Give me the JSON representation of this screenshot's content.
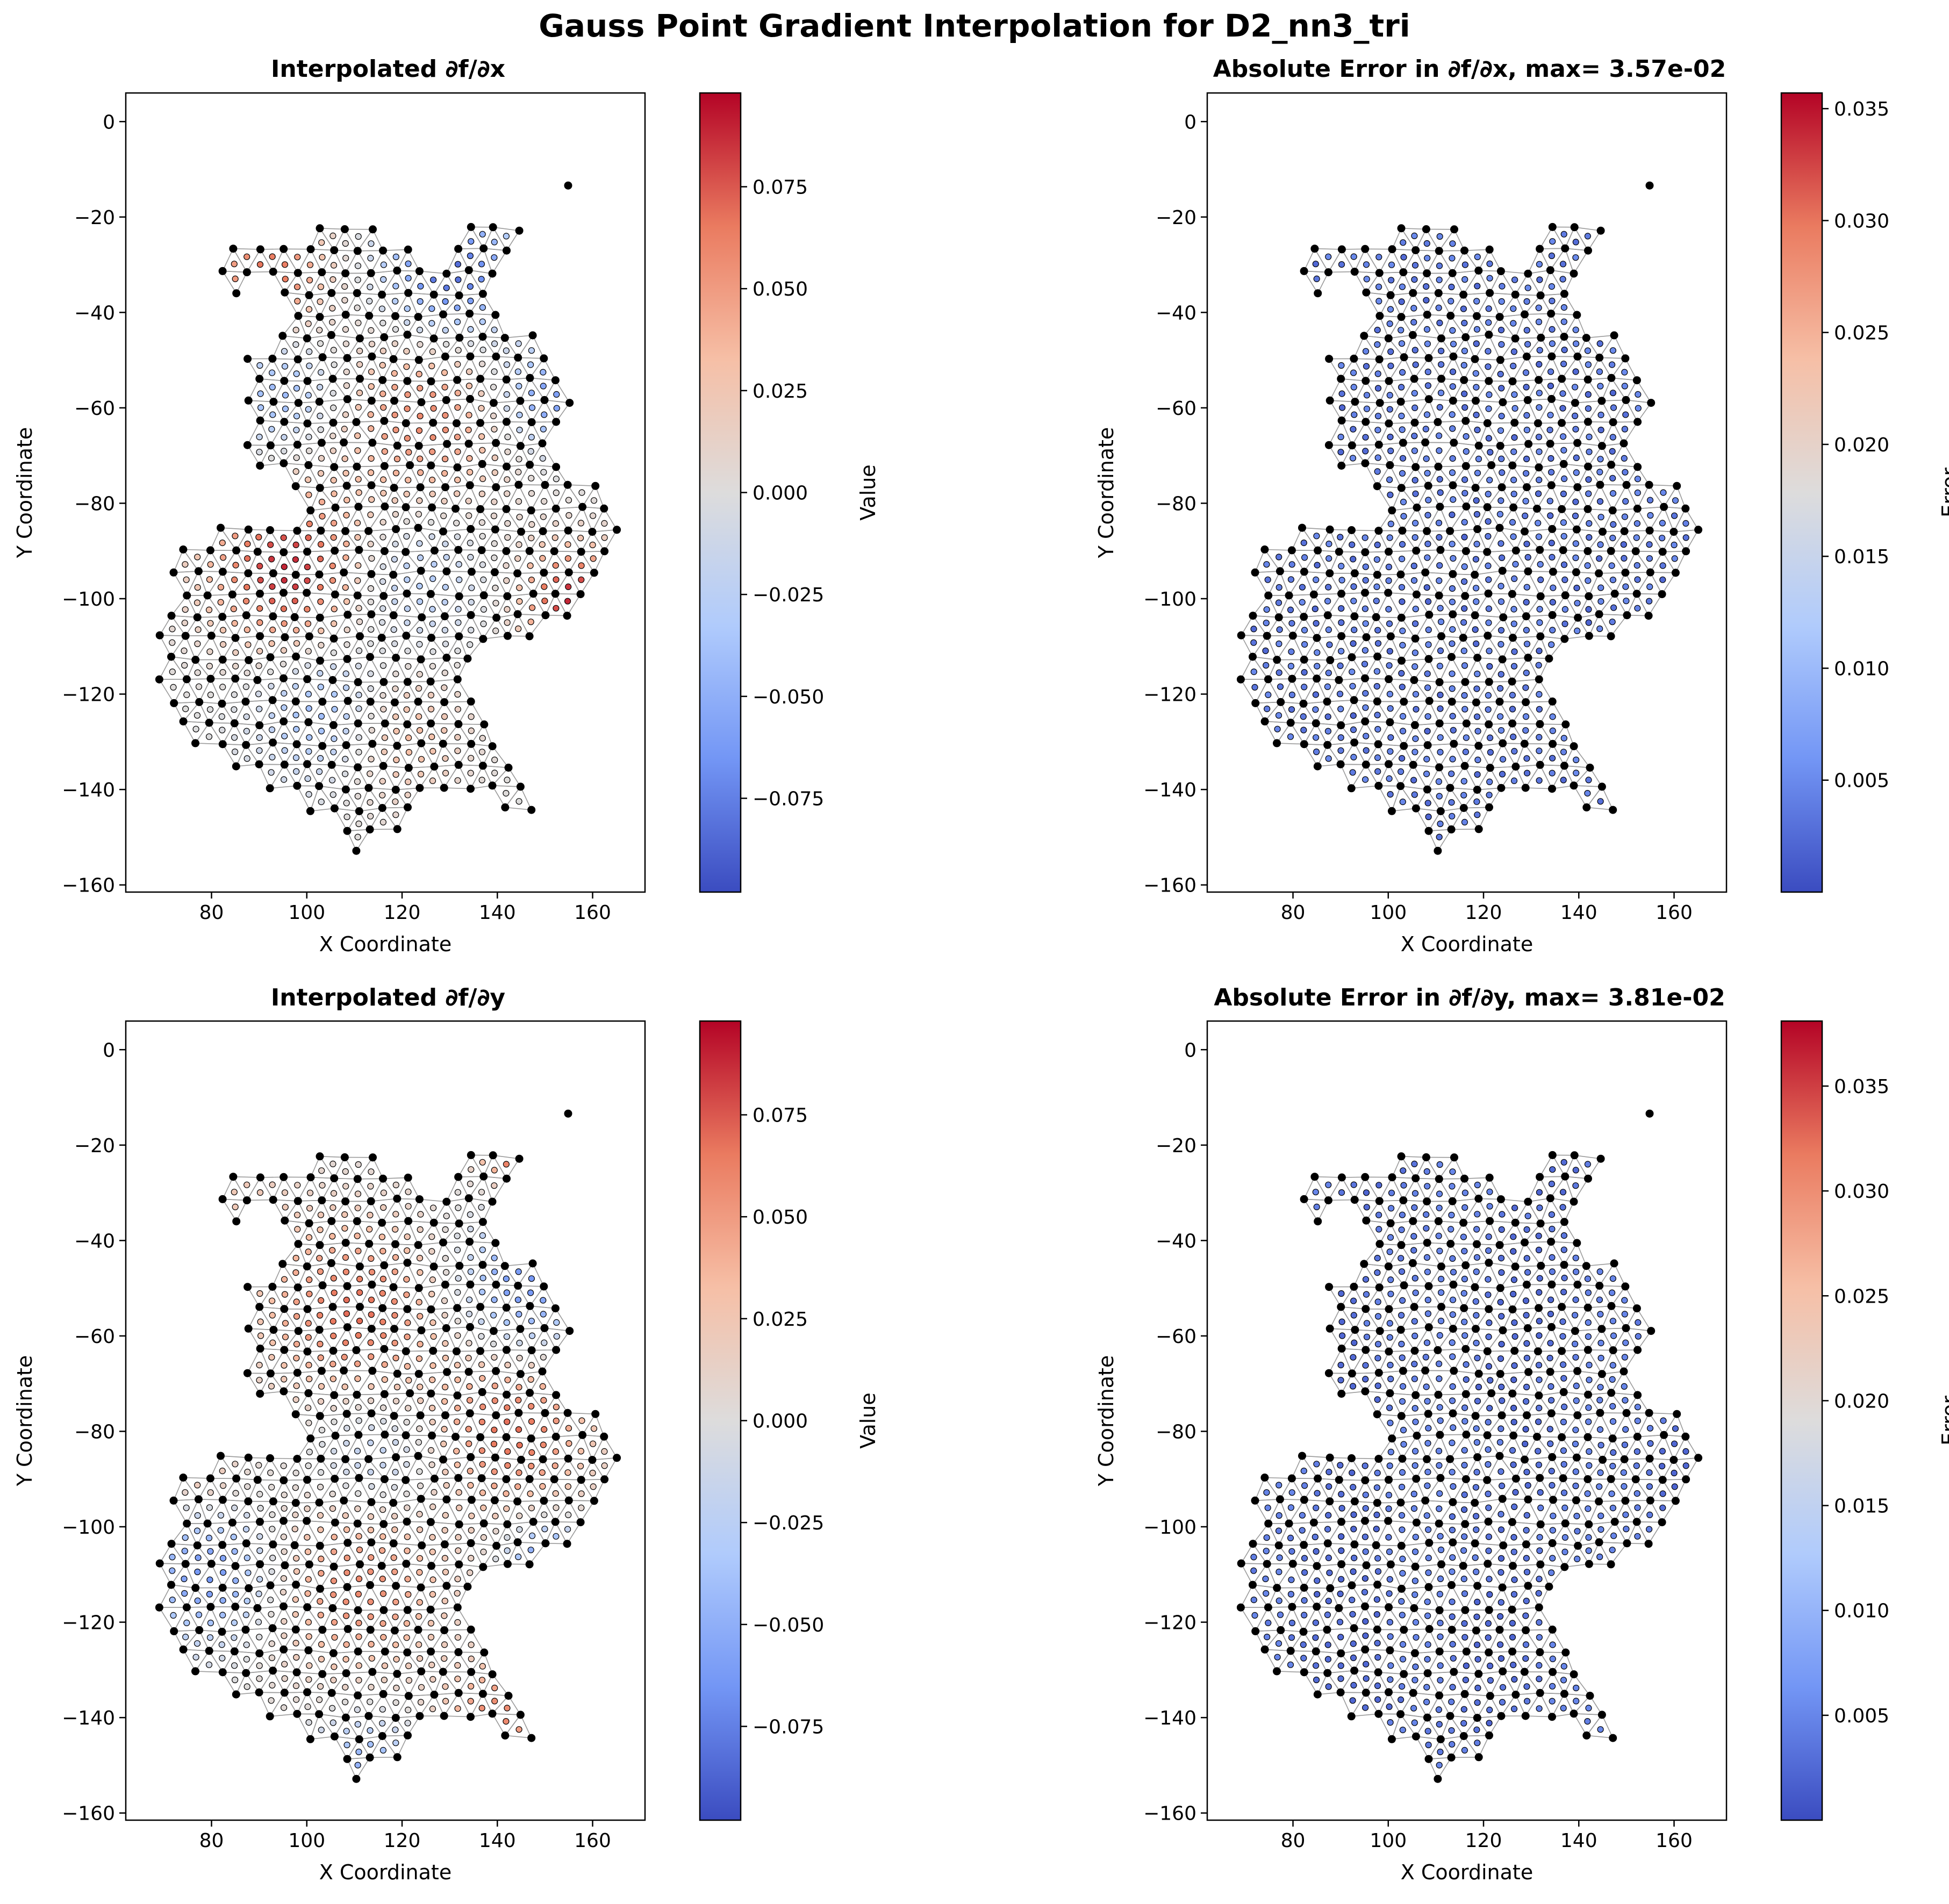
{
  "figure": {
    "title": "Gauss Point Gradient Interpolation for D2_nn3_tri"
  },
  "colormap": {
    "name": "coolwarm",
    "stops": [
      "#3b4cc0",
      "#7396f5",
      "#b0cbfc",
      "#dddcdc",
      "#f6bfa6",
      "#ea7b60",
      "#b40426"
    ]
  },
  "style": {
    "mesh_edge_color": "#9a9a9a",
    "node_color": "#000000",
    "point_edge_color": "#000000",
    "frame_color": "#000000"
  },
  "chart_data": [
    {
      "type": "scatter",
      "title": "Interpolated ∂f/∂x",
      "xlabel": "X Coordinate",
      "ylabel": "Y Coordinate",
      "xlim": [
        62,
        171
      ],
      "ylim": [
        -161.5,
        6
      ],
      "xticks": [
        "80",
        "100",
        "120",
        "140",
        "160"
      ],
      "yticks": [
        "0",
        "−20",
        "−40",
        "−60",
        "−80",
        "−100",
        "−120",
        "−140",
        "−160"
      ],
      "colorbar": {
        "label": "Value",
        "range": [
          -0.098,
          0.098
        ],
        "ticks": [
          "0.075",
          "0.050",
          "0.025",
          "0.000",
          "−0.025",
          "−0.050",
          "−0.075"
        ]
      },
      "field": "dfdx"
    },
    {
      "type": "scatter",
      "title": "Absolute Error in ∂f/∂x, max= 3.57e-02",
      "xlabel": "X Coordinate",
      "ylabel": "Y Coordinate",
      "xlim": [
        62,
        171
      ],
      "ylim": [
        -161.5,
        6
      ],
      "xticks": [
        "80",
        "100",
        "120",
        "140",
        "160"
      ],
      "yticks": [
        "0",
        "−20",
        "−40",
        "−60",
        "−80",
        "−100",
        "−120",
        "−140",
        "−160"
      ],
      "colorbar": {
        "label": "Error",
        "range": [
          0.0,
          0.0357
        ],
        "ticks": [
          "0.035",
          "0.030",
          "0.025",
          "0.020",
          "0.015",
          "0.010",
          "0.005"
        ]
      },
      "field": "err_dfdx"
    },
    {
      "type": "scatter",
      "title": "Interpolated ∂f/∂y",
      "xlabel": "X Coordinate",
      "ylabel": "Y Coordinate",
      "xlim": [
        62,
        171
      ],
      "ylim": [
        -161.5,
        6
      ],
      "xticks": [
        "80",
        "100",
        "120",
        "140",
        "160"
      ],
      "yticks": [
        "0",
        "−20",
        "−40",
        "−60",
        "−80",
        "−100",
        "−120",
        "−140",
        "−160"
      ],
      "colorbar": {
        "label": "Value",
        "range": [
          -0.098,
          0.098
        ],
        "ticks": [
          "0.075",
          "0.050",
          "0.025",
          "0.000",
          "−0.025",
          "−0.050",
          "−0.075"
        ]
      },
      "field": "dfdy"
    },
    {
      "type": "scatter",
      "title": "Absolute Error in ∂f/∂y, max= 3.81e-02",
      "xlabel": "X Coordinate",
      "ylabel": "Y Coordinate",
      "xlim": [
        62,
        171
      ],
      "ylim": [
        -161.5,
        6
      ],
      "xticks": [
        "80",
        "100",
        "120",
        "140",
        "160"
      ],
      "yticks": [
        "0",
        "−20",
        "−40",
        "−60",
        "−80",
        "−100",
        "−120",
        "−140",
        "−160"
      ],
      "colorbar": {
        "label": "Error",
        "range": [
          0.0,
          0.0381
        ],
        "ticks": [
          "0.035",
          "0.030",
          "0.025",
          "0.020",
          "0.015",
          "0.010",
          "0.005"
        ]
      },
      "field": "err_dfdy"
    }
  ],
  "domain_outline": [
    [
      110,
      -2
    ],
    [
      112,
      -3
    ],
    [
      111,
      -8
    ],
    [
      108,
      -13
    ],
    [
      103,
      -19
    ],
    [
      96,
      -24
    ],
    [
      86,
      -25
    ],
    [
      80,
      -29
    ],
    [
      80,
      -36
    ],
    [
      83,
      -39
    ],
    [
      87,
      -38
    ],
    [
      90,
      -35
    ],
    [
      93,
      -38
    ],
    [
      96,
      -40
    ],
    [
      92,
      -44
    ],
    [
      88,
      -47
    ],
    [
      86,
      -52
    ],
    [
      85,
      -58
    ],
    [
      86,
      -64
    ],
    [
      87,
      -70
    ],
    [
      90,
      -73
    ],
    [
      94,
      -76
    ],
    [
      98,
      -78
    ],
    [
      97,
      -83
    ],
    [
      93,
      -84
    ],
    [
      86,
      -86
    ],
    [
      80,
      -84
    ],
    [
      77,
      -89
    ],
    [
      73,
      -88
    ],
    [
      70,
      -86
    ],
    [
      71,
      -90
    ],
    [
      72,
      -97
    ],
    [
      70,
      -102
    ],
    [
      68,
      -106
    ],
    [
      67,
      -111
    ],
    [
      68,
      -117
    ],
    [
      69,
      -122
    ],
    [
      71,
      -128
    ],
    [
      74,
      -133
    ],
    [
      80,
      -135
    ],
    [
      86,
      -138
    ],
    [
      90,
      -141
    ],
    [
      95,
      -143
    ],
    [
      100,
      -145
    ],
    [
      106,
      -149
    ],
    [
      111,
      -154
    ],
    [
      116,
      -153
    ],
    [
      119,
      -150
    ],
    [
      122,
      -146
    ],
    [
      126,
      -143
    ],
    [
      131,
      -140
    ],
    [
      137,
      -142
    ],
    [
      141,
      -145
    ],
    [
      146,
      -149
    ],
    [
      148,
      -145
    ],
    [
      147,
      -138
    ],
    [
      146,
      -132
    ],
    [
      141,
      -127
    ],
    [
      137,
      -121
    ],
    [
      134,
      -116
    ],
    [
      134,
      -113
    ],
    [
      139,
      -112
    ],
    [
      145,
      -111
    ],
    [
      150,
      -109
    ],
    [
      154,
      -107
    ],
    [
      158,
      -102
    ],
    [
      162,
      -96
    ],
    [
      165,
      -90
    ],
    [
      167,
      -85
    ],
    [
      166,
      -80
    ],
    [
      163,
      -77
    ],
    [
      158,
      -75
    ],
    [
      154,
      -70
    ],
    [
      152,
      -65
    ],
    [
      155,
      -60
    ],
    [
      157,
      -55
    ],
    [
      155,
      -50
    ],
    [
      150,
      -46
    ],
    [
      146,
      -42
    ],
    [
      142,
      -38
    ],
    [
      137,
      -34
    ],
    [
      141,
      -30
    ],
    [
      145,
      -25
    ],
    [
      148,
      -21
    ],
    [
      152,
      -17
    ],
    [
      157,
      -14
    ],
    [
      158,
      -11
    ],
    [
      155,
      -12
    ],
    [
      150,
      -16
    ],
    [
      146,
      -20
    ],
    [
      143,
      -21
    ],
    [
      136,
      -20
    ],
    [
      131,
      -22
    ],
    [
      128,
      -25
    ],
    [
      126,
      -28
    ],
    [
      123,
      -27
    ],
    [
      118,
      -24
    ],
    [
      113,
      -21
    ],
    [
      108,
      -20
    ],
    [
      104,
      -21
    ],
    [
      101,
      -20
    ],
    [
      105,
      -17
    ],
    [
      109,
      -10
    ],
    [
      110,
      -5
    ]
  ]
}
